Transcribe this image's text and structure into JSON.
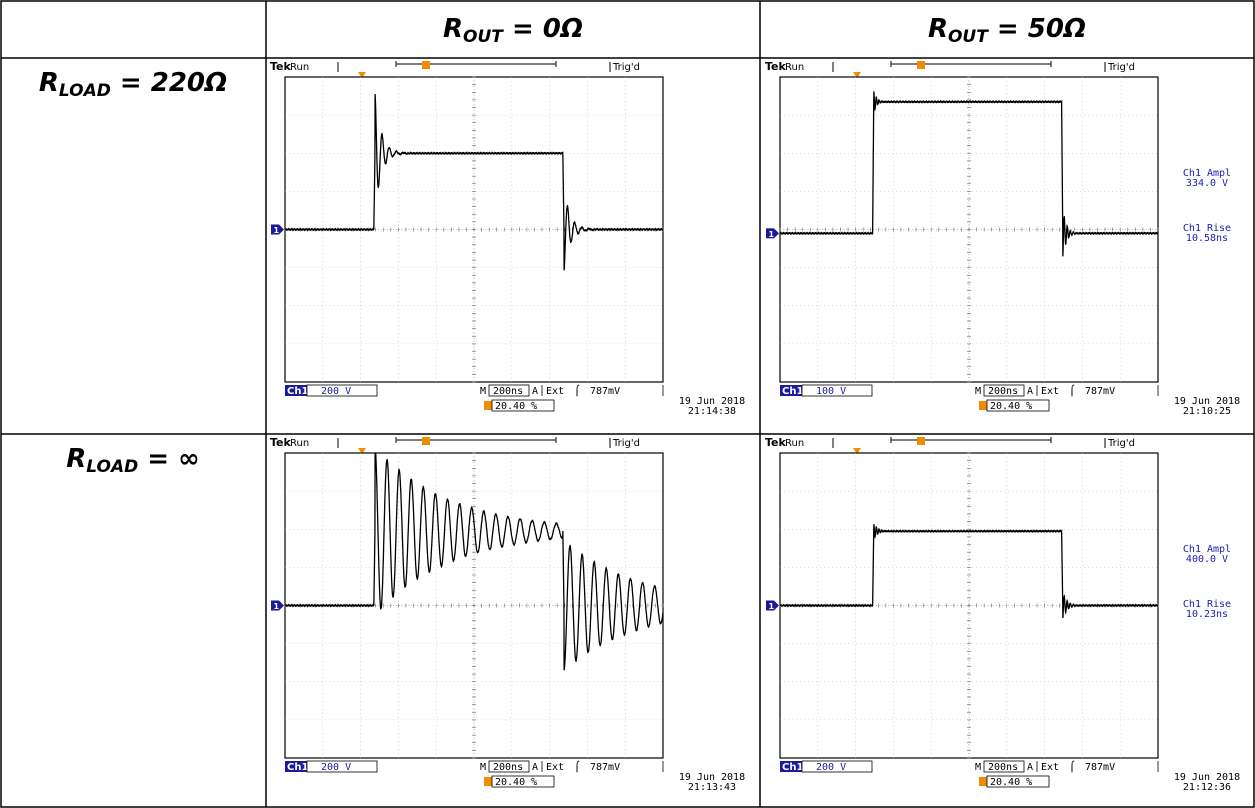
{
  "headers": {
    "col1": {
      "main": "R",
      "sub": "OUT",
      "rest": " = 0Ω"
    },
    "col2": {
      "main": "R",
      "sub": "OUT",
      "rest": " = 50Ω"
    },
    "row1": {
      "main": "R",
      "sub": "LOAD",
      "rest": " = 220Ω"
    },
    "row2": {
      "main": "R",
      "sub": "LOAD",
      "rest": " = ∞"
    }
  },
  "colors": {
    "trigger_marker": "#f08c00",
    "channel_marker": "#1a1a9a",
    "measurement_text": "#1a1ab4",
    "trace": "#000000"
  },
  "scopes": [
    {
      "brand": "Tek",
      "state": "Run",
      "trig_status": "Trig'd",
      "ch_label": "Ch1",
      "ch_scale": "200 V",
      "timebase_prefix": "M",
      "timebase": "200ns",
      "trig_source_prefix": "A",
      "trig_source": "Ext",
      "trig_slope": "⌠",
      "trig_level": "787mV",
      "trig_pos": "20.40 %",
      "date": "19 Jun 2018",
      "time": "21:14:38",
      "measurements": []
    },
    {
      "brand": "Tek",
      "state": "Run",
      "trig_status": "Trig'd",
      "ch_label": "Ch1",
      "ch_scale": "100 V",
      "timebase_prefix": "M",
      "timebase": "200ns",
      "trig_source_prefix": "A",
      "trig_source": "Ext",
      "trig_slope": "⌠",
      "trig_level": "787mV",
      "trig_pos": "20.40 %",
      "date": "19 Jun 2018",
      "time": "21:10:25",
      "measurements": [
        {
          "label": "Ch1 Ampl",
          "value": "334.0 V"
        },
        {
          "label": "Ch1 Rise",
          "value": "10.58ns"
        }
      ]
    },
    {
      "brand": "Tek",
      "state": "Run",
      "trig_status": "Trig'd",
      "ch_label": "Ch1",
      "ch_scale": "200 V",
      "timebase_prefix": "M",
      "timebase": "200ns",
      "trig_source_prefix": "A",
      "trig_source": "Ext",
      "trig_slope": "⌠",
      "trig_level": "787mV",
      "trig_pos": "20.40 %",
      "date": "19 Jun 2018",
      "time": "21:13:43",
      "measurements": []
    },
    {
      "brand": "Tek",
      "state": "Run",
      "trig_status": "Trig'd",
      "ch_label": "Ch1",
      "ch_scale": "200 V",
      "timebase_prefix": "M",
      "timebase": "200ns",
      "trig_source_prefix": "A",
      "trig_source": "Ext",
      "trig_slope": "⌠",
      "trig_level": "787mV",
      "trig_pos": "20.40 %",
      "date": "19 Jun 2018",
      "time": "21:12:36",
      "measurements": [
        {
          "label": "Ch1 Ampl",
          "value": "400.0 V"
        },
        {
          "label": "Ch1 Rise",
          "value": "10.23ns"
        }
      ]
    }
  ],
  "chart_data": [
    {
      "type": "line",
      "x_unit": "div (200 ns/div)",
      "y_unit": "div",
      "xlim": [
        0,
        10
      ],
      "ylim": [
        -4,
        4
      ],
      "series": [
        {
          "baseline": 0,
          "step_time": 2.35,
          "plateau": 2.0,
          "rise_overshoot": 1.6,
          "rise_ring_decay": 0.16,
          "rise_ring_period": 0.19,
          "fall_time": 7.35,
          "fall_undershoot": -1.1,
          "fall_ring_decay": 0.16,
          "fall_ring_period": 0.19,
          "noise": 0.02
        }
      ]
    },
    {
      "type": "line",
      "x_unit": "div (200 ns/div)",
      "y_unit": "div",
      "xlim": [
        0,
        10
      ],
      "ylim": [
        -4,
        4
      ],
      "series": [
        {
          "baseline": -0.1,
          "step_time": 2.45,
          "plateau": 3.35,
          "rise_overshoot": 0.3,
          "rise_ring_decay": 0.07,
          "rise_ring_period": 0.07,
          "fall_time": 7.45,
          "fall_undershoot": -0.65,
          "fall_ring_decay": 0.1,
          "fall_ring_period": 0.08,
          "noise": 0.02
        }
      ]
    },
    {
      "type": "line",
      "x_unit": "div (200 ns/div)",
      "y_unit": "div",
      "xlim": [
        0,
        10
      ],
      "ylim": [
        -4,
        4
      ],
      "series": [
        {
          "baseline": 0,
          "step_time": 2.35,
          "plateau": 1.95,
          "rise_overshoot": 2.2,
          "rise_ring_decay": 2.0,
          "rise_ring_period": 0.32,
          "fall_time": 7.35,
          "fall_undershoot": -1.7,
          "fall_ring_decay": 2.0,
          "fall_ring_period": 0.32,
          "noise": 0.02
        }
      ]
    },
    {
      "type": "line",
      "x_unit": "div (200 ns/div)",
      "y_unit": "div",
      "xlim": [
        0,
        10
      ],
      "ylim": [
        -4,
        4
      ],
      "series": [
        {
          "baseline": 0,
          "step_time": 2.45,
          "plateau": 1.95,
          "rise_overshoot": 0.2,
          "rise_ring_decay": 0.1,
          "rise_ring_period": 0.07,
          "fall_time": 7.45,
          "fall_undershoot": -0.35,
          "fall_ring_decay": 0.12,
          "fall_ring_period": 0.08,
          "noise": 0.02
        }
      ]
    }
  ]
}
